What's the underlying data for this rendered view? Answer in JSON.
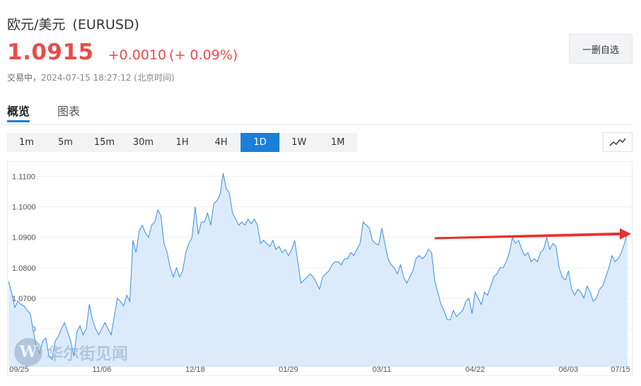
{
  "header": {
    "name": "欧元/美元",
    "code": "(EURUSD)",
    "price": "1.0915",
    "change": "+0.0010",
    "change_pct": "(+ 0.09%)",
    "status": "交易中，",
    "timestamp": "2024-07-15 18:27:12 (北京时间)",
    "watchlist_button": "一删自选"
  },
  "tabs": [
    {
      "label": "概览",
      "active": true
    },
    {
      "label": "图表",
      "active": false
    }
  ],
  "periods": [
    {
      "label": "1m",
      "active": false
    },
    {
      "label": "5m",
      "active": false
    },
    {
      "label": "15m",
      "active": false
    },
    {
      "label": "30m",
      "active": false
    },
    {
      "label": "1H",
      "active": false
    },
    {
      "label": "4H",
      "active": false
    },
    {
      "label": "1D",
      "active": true
    },
    {
      "label": "1W",
      "active": false
    },
    {
      "label": "1M",
      "active": false
    }
  ],
  "chart_type_icon": "line-chart-icon",
  "watermark": {
    "logo_letter": "W",
    "text": "华尔街见闻"
  },
  "colors": {
    "up": "#e94b4b",
    "accent": "#1b7fd9",
    "line": "#3a8ee6",
    "fill": "#dcebfb",
    "arrow": "#e8302e"
  },
  "chart_data": {
    "type": "area",
    "title": "",
    "xlabel": "",
    "ylabel": "",
    "ylim": [
      1.0475,
      1.1145
    ],
    "yticks": [
      1.05,
      1.06,
      1.07,
      1.08,
      1.09,
      1.1,
      1.11
    ],
    "ytick_labels": [
      "1.0500",
      "1.0600",
      "1.0700",
      "1.0800",
      "1.0900",
      "1.1000",
      "1.1100"
    ],
    "xtick_labels": [
      "09/25",
      "11/06",
      "12/18",
      "01/29",
      "03/11",
      "04/22",
      "06/03",
      "07/15"
    ],
    "xtick_index": [
      0,
      30,
      60,
      90,
      120,
      150,
      180,
      210
    ],
    "grid": true,
    "series": [
      {
        "values": [
          1.0755,
          1.072,
          1.067,
          1.069,
          1.068,
          1.0675,
          1.066,
          1.065,
          1.059,
          1.054,
          1.052,
          1.056,
          1.057,
          1.051,
          1.05,
          1.056,
          1.0575,
          1.06,
          1.062,
          1.059,
          1.056,
          1.051,
          1.059,
          1.061,
          1.058,
          1.06,
          1.068,
          1.063,
          1.06,
          1.058,
          1.06,
          1.062,
          1.06,
          1.058,
          1.064,
          1.07,
          1.069,
          1.0675,
          1.071,
          1.069,
          1.089,
          1.085,
          1.092,
          1.094,
          1.0915,
          1.09,
          1.094,
          1.095,
          1.099,
          1.097,
          1.088,
          1.085,
          1.08,
          1.077,
          1.08,
          1.077,
          1.079,
          1.085,
          1.088,
          1.09,
          1.1,
          1.091,
          1.095,
          1.095,
          1.098,
          1.094,
          1.101,
          1.102,
          1.104,
          1.111,
          1.106,
          1.1045,
          1.098,
          1.096,
          1.094,
          1.095,
          1.094,
          1.096,
          1.0945,
          1.096,
          1.094,
          1.088,
          1.089,
          1.088,
          1.087,
          1.089,
          1.086,
          1.087,
          1.085,
          1.086,
          1.084,
          1.086,
          1.089,
          1.082,
          1.075,
          1.076,
          1.077,
          1.078,
          1.077,
          1.075,
          1.073,
          1.077,
          1.078,
          1.079,
          1.081,
          1.082,
          1.082,
          1.081,
          1.083,
          1.083,
          1.085,
          1.084,
          1.086,
          1.088,
          1.095,
          1.094,
          1.093,
          1.089,
          1.088,
          1.0875,
          1.093,
          1.088,
          1.083,
          1.081,
          1.08,
          1.078,
          1.081,
          1.077,
          1.075,
          1.077,
          1.079,
          1.083,
          1.084,
          1.083,
          1.084,
          1.086,
          1.085,
          1.076,
          1.072,
          1.068,
          1.066,
          1.063,
          1.063,
          1.066,
          1.064,
          1.065,
          1.066,
          1.069,
          1.07,
          1.065,
          1.072,
          1.07,
          1.068,
          1.072,
          1.071,
          1.074,
          1.077,
          1.078,
          1.08,
          1.08,
          1.082,
          1.085,
          1.09,
          1.088,
          1.089,
          1.086,
          1.084,
          1.085,
          1.082,
          1.083,
          1.082,
          1.085,
          1.086,
          1.09,
          1.086,
          1.088,
          1.087,
          1.08,
          1.077,
          1.076,
          1.079,
          1.073,
          1.071,
          1.073,
          1.072,
          1.07,
          1.074,
          1.072,
          1.069,
          1.07,
          1.073,
          1.074,
          1.077,
          1.08,
          1.084,
          1.082,
          1.083,
          1.085,
          1.088,
          1.0915
        ]
      }
    ],
    "annotations": [
      {
        "type": "arrow",
        "from_index": 137,
        "from_value": 1.0897,
        "to_index": 218,
        "to_value": 1.0911
      }
    ]
  }
}
